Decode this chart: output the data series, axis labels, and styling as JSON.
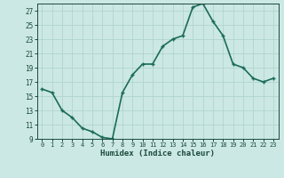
{
  "x": [
    0,
    1,
    2,
    3,
    4,
    5,
    6,
    7,
    8,
    9,
    10,
    11,
    12,
    13,
    14,
    15,
    16,
    17,
    18,
    19,
    20,
    21,
    22,
    23
  ],
  "y": [
    16,
    15.5,
    13,
    12,
    10.5,
    10,
    9.2,
    9.0,
    15.5,
    18,
    19.5,
    19.5,
    22,
    23,
    23.5,
    27.5,
    28,
    25.5,
    23.5,
    19.5,
    19,
    17.5,
    17,
    17.5
  ],
  "line_color": "#1a6b5a",
  "marker_color": "#1a6b5a",
  "bg_color": "#cce8e4",
  "grid_color": "#b0d4cf",
  "xlabel": "Humidex (Indice chaleur)",
  "ylim": [
    9,
    28
  ],
  "xlim": [
    -0.5,
    23.5
  ],
  "yticks": [
    9,
    11,
    13,
    15,
    17,
    19,
    21,
    23,
    25,
    27
  ],
  "xticks": [
    0,
    1,
    2,
    3,
    4,
    5,
    6,
    7,
    8,
    9,
    10,
    11,
    12,
    13,
    14,
    15,
    16,
    17,
    18,
    19,
    20,
    21,
    22,
    23
  ],
  "xtick_labels": [
    "0",
    "1",
    "2",
    "3",
    "4",
    "5",
    "6",
    "7",
    "8",
    "9",
    "10",
    "11",
    "12",
    "13",
    "14",
    "15",
    "16",
    "17",
    "18",
    "19",
    "20",
    "21",
    "22",
    "23"
  ],
  "font_color": "#1a4a3a",
  "linewidth": 1.2,
  "markersize": 3.5
}
